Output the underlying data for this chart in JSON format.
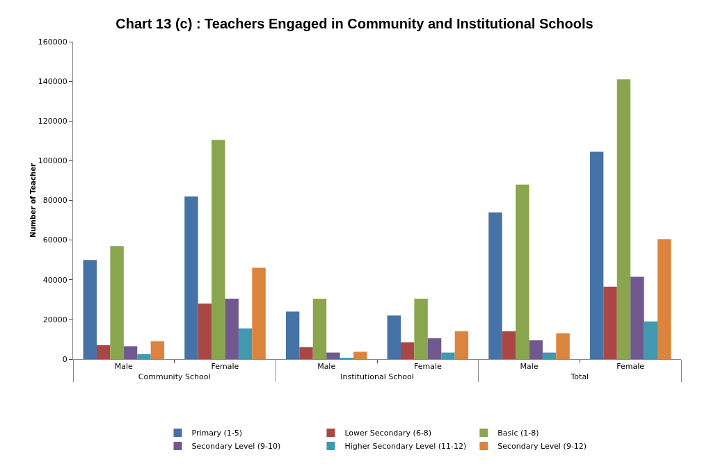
{
  "chart_data": {
    "type": "bar",
    "title": "Chart 13 (c) : Teachers Engaged in Community and Institutional Schools",
    "ylabel": "Number of Teacher",
    "categories": [
      "Male",
      "Female",
      "Male",
      "Female",
      "Male",
      "Female"
    ],
    "annotations": [
      "Community School",
      "Institutional School",
      "Total"
    ],
    "series": [
      {
        "name": "Primary (1-5)",
        "color": "#4572a7",
        "values": [
          50000,
          82000,
          24000,
          22000,
          74000,
          104500
        ]
      },
      {
        "name": "Lower Secondary (6-8)",
        "color": "#aa4643",
        "values": [
          7000,
          28000,
          6000,
          8500,
          14000,
          36500
        ]
      },
      {
        "name": "Basic (1-8)",
        "color": "#89a54e",
        "values": [
          57000,
          110500,
          30500,
          30500,
          88000,
          141000
        ]
      },
      {
        "name": "Secondary Level (9-10)",
        "color": "#71588f",
        "values": [
          6500,
          30500,
          3300,
          10500,
          9500,
          41500
        ]
      },
      {
        "name": "Higher Secondary Level (11-12)",
        "color": "#4198af",
        "values": [
          2500,
          15500,
          700,
          3300,
          3300,
          19000
        ]
      },
      {
        "name": "Secondary Level (9-12)",
        "color": "#db843d",
        "values": [
          9000,
          46000,
          3700,
          14000,
          13000,
          60500
        ]
      }
    ],
    "ylim": [
      0,
      160000
    ],
    "yticks": [
      0,
      20000,
      40000,
      60000,
      80000,
      100000,
      120000,
      140000,
      160000
    ],
    "grid": false,
    "legend": "bottom"
  }
}
